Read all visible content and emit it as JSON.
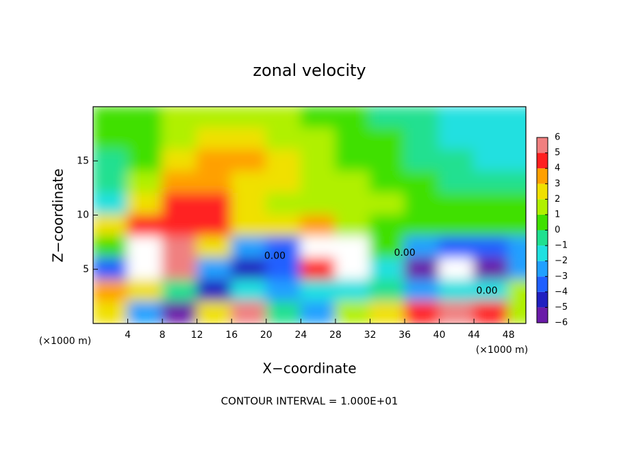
{
  "chart_data": {
    "type": "heatmap",
    "title": "zonal velocity",
    "x_label": "X−coordinate",
    "y_label": "Z−coordinate",
    "x_unit": "(×1000 m)",
    "x_unit_right": "(×1000 m)",
    "footer": "CONTOUR INTERVAL = 1.000E+01",
    "xlim": [
      0,
      50
    ],
    "ylim": [
      0,
      20
    ],
    "xticks": [
      4,
      8,
      12,
      16,
      20,
      24,
      28,
      32,
      36,
      40,
      44,
      48
    ],
    "yticks": [
      5,
      10,
      15
    ],
    "x": [
      2,
      6,
      10,
      14,
      18,
      22,
      26,
      30,
      34,
      38,
      42,
      46,
      50
    ],
    "y": [
      19,
      17,
      15,
      13,
      11,
      9,
      7,
      5,
      3,
      1
    ],
    "z": [
      [
        0,
        0.5,
        1,
        1.5,
        1,
        1,
        0.5,
        0,
        -0.5,
        -1,
        -1.5,
        -2,
        -1.5
      ],
      [
        0,
        0.5,
        1.5,
        2.5,
        2.5,
        1.5,
        1,
        0.5,
        0,
        -1,
        -1.5,
        -2,
        -2
      ],
      [
        -0.5,
        0.5,
        2,
        3,
        3,
        2.5,
        1.5,
        0.5,
        0,
        -0.5,
        -1,
        -1.5,
        -2
      ],
      [
        -1,
        1,
        3.5,
        3,
        2.5,
        2,
        1.5,
        1,
        0.5,
        0,
        -0.5,
        -1,
        -1
      ],
      [
        -2,
        2.5,
        4.5,
        4,
        2,
        1.5,
        1.5,
        1.5,
        1,
        0.5,
        0,
        0,
        0
      ],
      [
        2,
        4,
        4.5,
        4,
        2,
        2,
        3,
        1,
        0.5,
        0,
        0,
        0,
        0
      ],
      [
        0,
        7,
        6,
        2,
        -3,
        -4,
        8,
        8,
        0,
        -3,
        -4,
        -4,
        -3
      ],
      [
        -4,
        7,
        5,
        -3,
        -5,
        -4,
        4,
        7,
        -2,
        -6,
        -7,
        -6,
        -3
      ],
      [
        3,
        2,
        -1,
        -5,
        -2,
        -3,
        -2,
        -2,
        -1,
        -3,
        -2,
        -2,
        1
      ],
      [
        2,
        -3,
        -6,
        2,
        5,
        -1,
        -3,
        1,
        2,
        4,
        5,
        4,
        1
      ]
    ],
    "colorbar_ticks": [
      6,
      5,
      4,
      3,
      2,
      1,
      0,
      {
        "value": -1,
        "label": "−1"
      },
      {
        "value": -2,
        "label": "−2"
      },
      {
        "value": -3,
        "label": "−3"
      },
      {
        "value": -4,
        "label": "−4"
      },
      {
        "value": -5,
        "label": "−5"
      },
      {
        "value": -6,
        "label": "−6"
      }
    ],
    "clim": [
      -6,
      6
    ],
    "colors": [
      "#6a1ba8",
      "#2020c0",
      "#2060ff",
      "#20a0ff",
      "#20e0e0",
      "#20e090",
      "#40e000",
      "#b0f000",
      "#f0e000",
      "#ffa000",
      "#ff2020",
      "#f08080"
    ],
    "out_of_range_color": "#ffffff",
    "contour_labels": [
      {
        "x": 21,
        "y": 6.2,
        "label": "0.00"
      },
      {
        "x": 36,
        "y": 6.5,
        "label": "0.00"
      },
      {
        "x": 45.5,
        "y": 3,
        "label": "0.00"
      }
    ]
  }
}
